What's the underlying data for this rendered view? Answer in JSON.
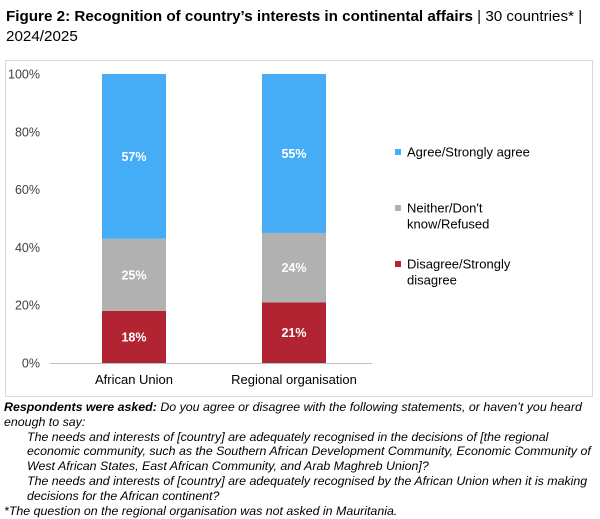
{
  "title": {
    "bold": "Figure 2: Recognition of country’s interests in continental affairs",
    "rest": " | 30 countries* | 2024/2025"
  },
  "chart_data": {
    "type": "bar",
    "stacked": true,
    "categories": [
      "African Union",
      "Regional organisation"
    ],
    "series": [
      {
        "name": "Disagree/Strongly disagree",
        "values": [
          18,
          21
        ],
        "color": "#b22431"
      },
      {
        "name": "Neither/Don't know/Refused",
        "values": [
          25,
          24
        ],
        "color": "#b1b1b1"
      },
      {
        "name": "Agree/Strongly agree",
        "values": [
          57,
          55
        ],
        "color": "#45adf5"
      }
    ],
    "data_labels": [
      [
        "18%",
        "21%"
      ],
      [
        "25%",
        "24%"
      ],
      [
        "57%",
        "55%"
      ]
    ],
    "yticks": [
      "0%",
      "20%",
      "40%",
      "60%",
      "80%",
      "100%"
    ],
    "ylim": [
      0,
      100
    ],
    "legend_lines": [
      [
        "Agree/Strongly agree"
      ],
      [
        "Neither/Don't",
        "know/Refused"
      ],
      [
        "Disagree/Strongly",
        "disagree"
      ]
    ],
    "legend_position": "right",
    "grid": false
  },
  "footer": {
    "asked_label": "Respondents were asked:",
    "asked_text": " Do you agree or disagree with the following statements, or haven’t you heard enough to say:",
    "q1": "The needs and interests of [country] are adequately recognised in the decisions of [the regional economic community, such as the Southern African Development Community, Economic Community of West African States, East African Community, and Arab Maghreb Union]?",
    "q2": "The needs and interests of [country] are adequately recognised by the African Union when it is making decisions for the African continent?",
    "note": "*The question on the regional organisation was not asked in Mauritania."
  }
}
